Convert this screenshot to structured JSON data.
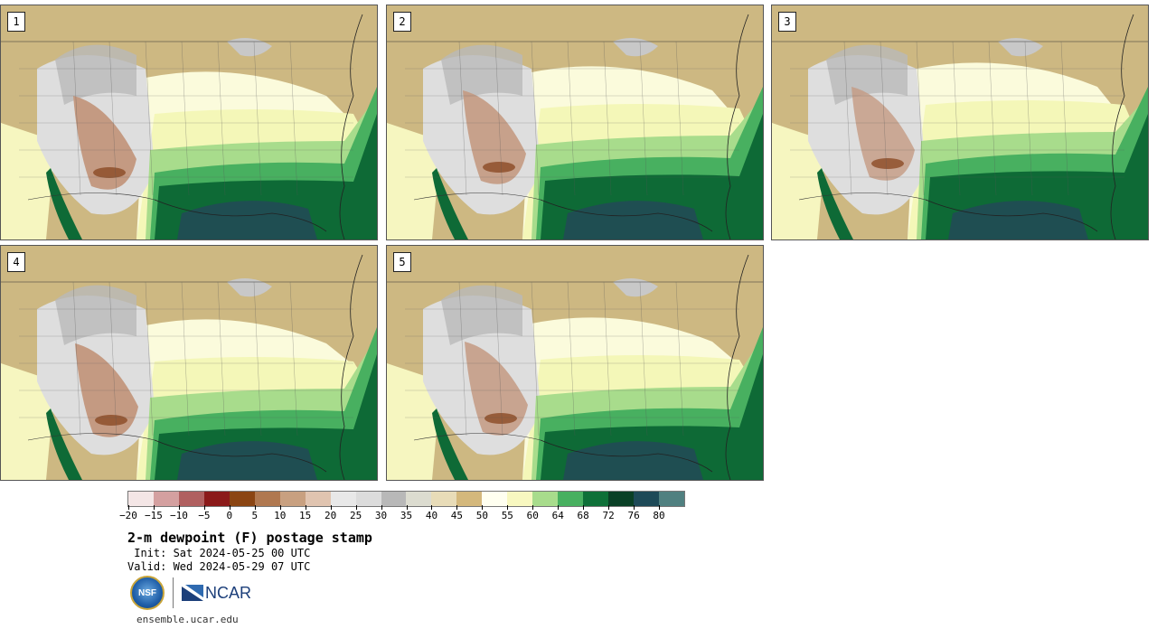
{
  "panels": [
    {
      "label": "1"
    },
    {
      "label": "2"
    },
    {
      "label": "3"
    },
    {
      "label": "4"
    },
    {
      "label": "5"
    }
  ],
  "colorbar": {
    "colors": [
      "#f4e6e6",
      "#d4a0a0",
      "#b06060",
      "#8b1a1a",
      "#8b4513",
      "#b07850",
      "#c8a080",
      "#e0c4b0",
      "#e8e8e8",
      "#dcdcdc",
      "#b8b8b8",
      "#dcdcd0",
      "#e8dcb8",
      "#d4b87c",
      "#fffff0",
      "#f8f8c0",
      "#a8dc8c",
      "#48b060",
      "#0e7038",
      "#0a4026",
      "#1e4a58",
      "#508080"
    ],
    "tick_labels": [
      "−20",
      "−15",
      "−10",
      "−5",
      "0",
      "5",
      "10",
      "15",
      "20",
      "25",
      "30",
      "35",
      "40",
      "45",
      "50",
      "55",
      "60",
      "64",
      "68",
      "72",
      "76",
      "80"
    ]
  },
  "title": "2-m dewpoint (F) postage stamp",
  "init": " Init: Sat 2024-05-25 00 UTC",
  "valid": "Valid: Wed 2024-05-29 07 UTC",
  "logos": {
    "nsf": "NSF",
    "ncar": "NCAR"
  },
  "url": "ensemble.ucar.edu"
}
